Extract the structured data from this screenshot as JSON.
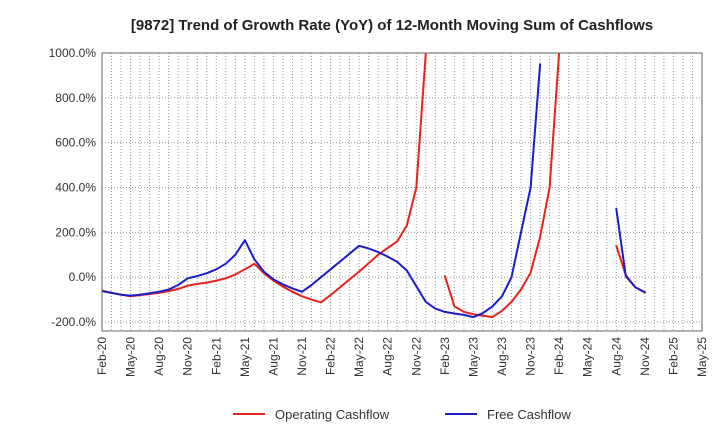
{
  "chart_data": {
    "type": "line",
    "title": "[9872]  Trend of Growth Rate (YoY) of 12-Month Moving Sum of Cashflows",
    "xlabel": "",
    "ylabel": "",
    "ylim": [
      -240,
      1000
    ],
    "yticks": [
      -200,
      0,
      200,
      400,
      600,
      800,
      1000
    ],
    "ytick_labels": [
      "-200.0%",
      "0.0%",
      "200.0%",
      "400.0%",
      "600.0%",
      "800.0%",
      "1000.0%"
    ],
    "x_start": "2020-02",
    "x_end": "2025-05",
    "x_labels": [
      "Feb-20",
      "May-20",
      "Aug-20",
      "Nov-20",
      "Feb-21",
      "May-21",
      "Aug-21",
      "Nov-21",
      "Feb-22",
      "May-22",
      "Aug-22",
      "Nov-22",
      "Feb-23",
      "May-23",
      "Aug-23",
      "Nov-23",
      "Feb-24",
      "May-24",
      "Aug-24",
      "Nov-24",
      "Feb-25",
      "May-25"
    ],
    "grid": true,
    "legend_position": "bottom",
    "series": [
      {
        "name": "Operating Cashflow",
        "color": "#e8231d",
        "points": [
          [
            "2020-02",
            -60
          ],
          [
            "2020-03",
            -70
          ],
          [
            "2020-04",
            -78
          ],
          [
            "2020-05",
            -85
          ],
          [
            "2020-06",
            -80
          ],
          [
            "2020-07",
            -75
          ],
          [
            "2020-08",
            -70
          ],
          [
            "2020-09",
            -62
          ],
          [
            "2020-10",
            -52
          ],
          [
            "2020-11",
            -38
          ],
          [
            "2020-12",
            -30
          ],
          [
            "2021-01",
            -24
          ],
          [
            "2021-02",
            -15
          ],
          [
            "2021-03",
            -5
          ],
          [
            "2021-04",
            12
          ],
          [
            "2021-05",
            35
          ],
          [
            "2021-06",
            60
          ],
          [
            "2021-07",
            18
          ],
          [
            "2021-08",
            -15
          ],
          [
            "2021-09",
            -42
          ],
          [
            "2021-10",
            -65
          ],
          [
            "2021-11",
            -85
          ],
          [
            "2021-12",
            -100
          ],
          [
            "2022-01",
            -112
          ],
          [
            "2022-02",
            -80
          ],
          [
            "2022-03",
            -45
          ],
          [
            "2022-04",
            -10
          ],
          [
            "2022-05",
            25
          ],
          [
            "2022-06",
            62
          ],
          [
            "2022-07",
            100
          ],
          [
            "2022-08",
            130
          ],
          [
            "2022-09",
            160
          ],
          [
            "2022-10",
            230
          ],
          [
            "2022-11",
            400
          ],
          [
            "2022-12",
            1000
          ],
          null,
          [
            "2023-02",
            5
          ],
          [
            "2023-03",
            -130
          ],
          [
            "2023-04",
            -155
          ],
          [
            "2023-05",
            -165
          ],
          [
            "2023-06",
            -172
          ],
          [
            "2023-07",
            -178
          ],
          [
            "2023-08",
            -150
          ],
          [
            "2023-09",
            -110
          ],
          [
            "2023-10",
            -55
          ],
          [
            "2023-11",
            20
          ],
          [
            "2023-12",
            180
          ],
          [
            "2024-01",
            400
          ],
          [
            "2024-02",
            1000
          ],
          null,
          [
            "2024-08",
            140
          ],
          [
            "2024-09",
            10
          ],
          [
            "2024-10",
            -45
          ],
          [
            "2024-11",
            -68
          ]
        ]
      },
      {
        "name": "Free Cashflow",
        "color": "#1c1cc8",
        "points": [
          [
            "2020-02",
            -62
          ],
          [
            "2020-03",
            -70
          ],
          [
            "2020-04",
            -78
          ],
          [
            "2020-05",
            -82
          ],
          [
            "2020-06",
            -78
          ],
          [
            "2020-07",
            -72
          ],
          [
            "2020-08",
            -65
          ],
          [
            "2020-09",
            -55
          ],
          [
            "2020-10",
            -35
          ],
          [
            "2020-11",
            -5
          ],
          [
            "2020-12",
            5
          ],
          [
            "2021-01",
            18
          ],
          [
            "2021-02",
            35
          ],
          [
            "2021-03",
            60
          ],
          [
            "2021-04",
            100
          ],
          [
            "2021-05",
            165
          ],
          [
            "2021-06",
            80
          ],
          [
            "2021-07",
            25
          ],
          [
            "2021-08",
            -10
          ],
          [
            "2021-09",
            -32
          ],
          [
            "2021-10",
            -50
          ],
          [
            "2021-11",
            -65
          ],
          [
            "2021-12",
            -35
          ],
          [
            "2022-01",
            0
          ],
          [
            "2022-02",
            35
          ],
          [
            "2022-03",
            70
          ],
          [
            "2022-04",
            105
          ],
          [
            "2022-05",
            140
          ],
          [
            "2022-06",
            128
          ],
          [
            "2022-07",
            112
          ],
          [
            "2022-08",
            92
          ],
          [
            "2022-09",
            68
          ],
          [
            "2022-10",
            30
          ],
          [
            "2022-11",
            -40
          ],
          [
            "2022-12",
            -110
          ],
          [
            "2023-01",
            -140
          ],
          [
            "2023-02",
            -155
          ],
          [
            "2023-03",
            -162
          ],
          [
            "2023-04",
            -168
          ],
          [
            "2023-05",
            -178
          ],
          [
            "2023-06",
            -160
          ],
          [
            "2023-07",
            -130
          ],
          [
            "2023-08",
            -85
          ],
          [
            "2023-09",
            0
          ],
          [
            "2023-10",
            200
          ],
          [
            "2023-11",
            400
          ],
          [
            "2023-12",
            950
          ],
          null,
          [
            "2024-08",
            305
          ],
          [
            "2024-09",
            5
          ],
          [
            "2024-10",
            -45
          ],
          [
            "2024-11",
            -68
          ]
        ]
      }
    ]
  }
}
